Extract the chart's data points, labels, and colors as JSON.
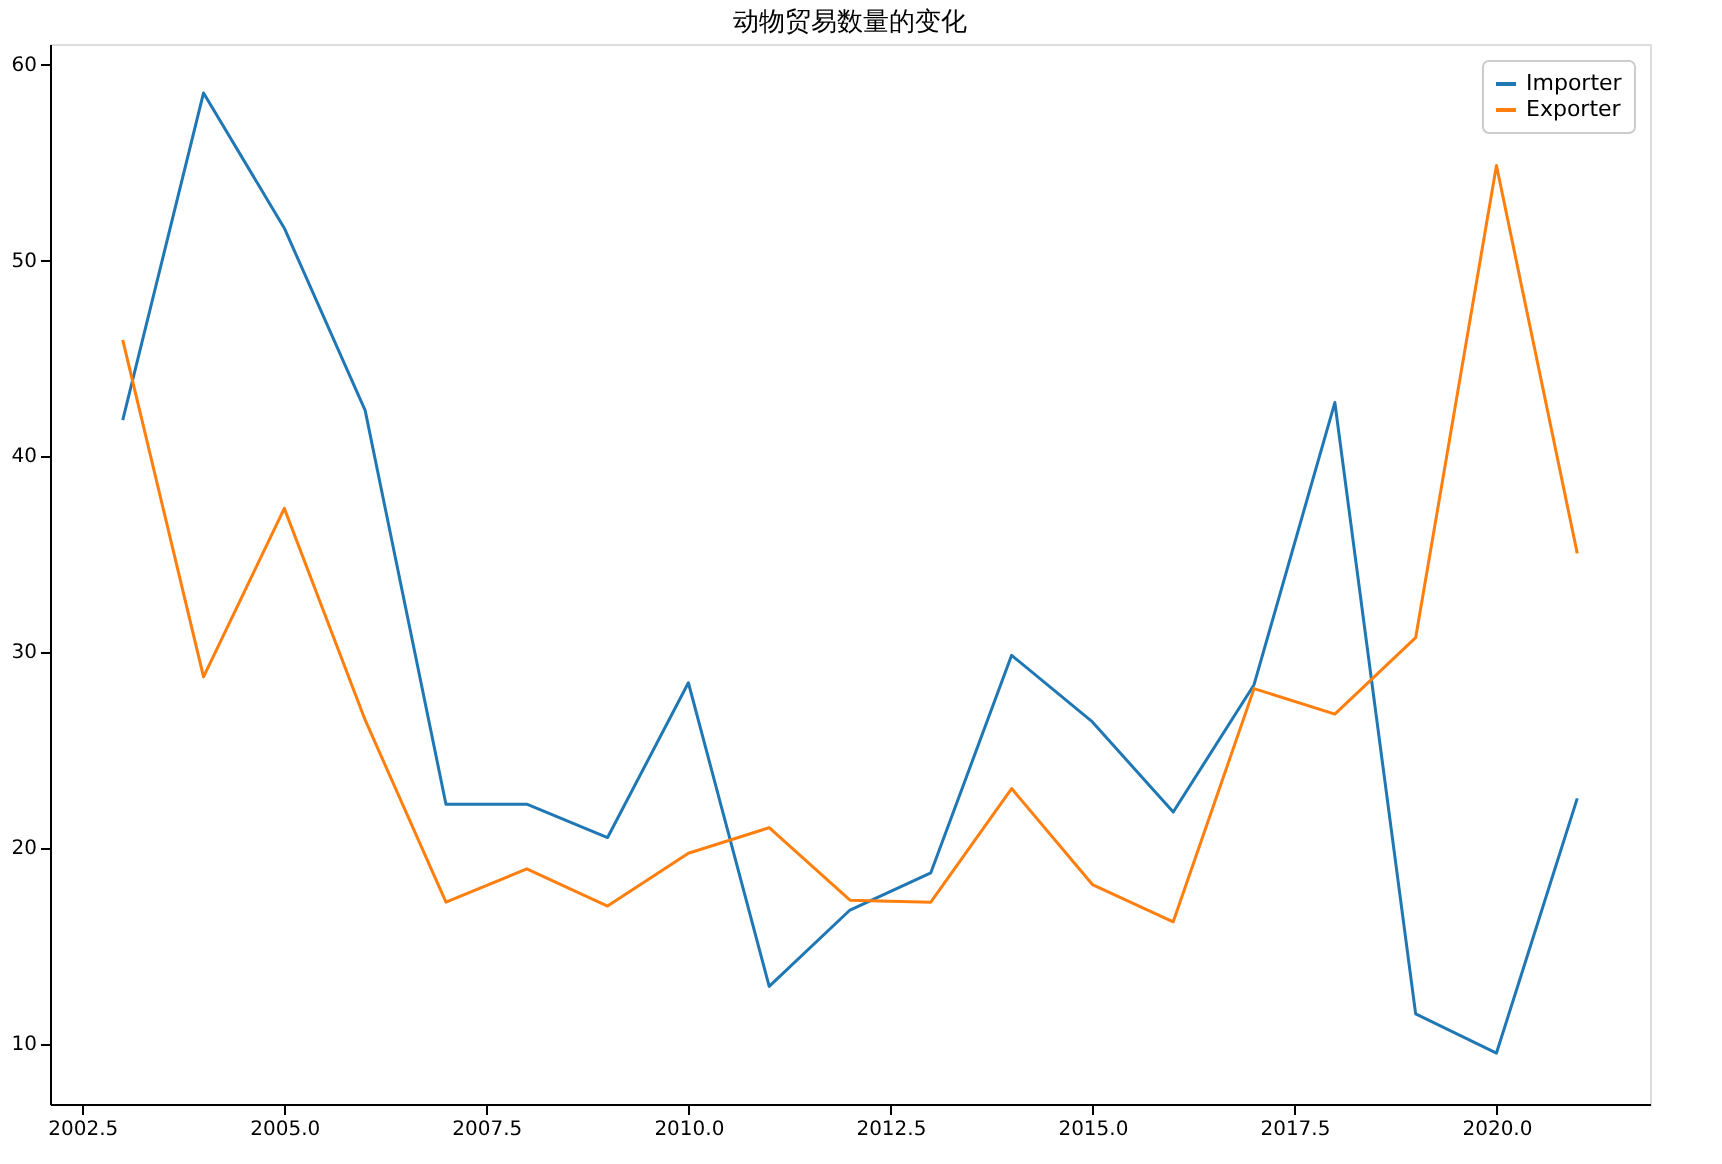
{
  "chart_data": {
    "type": "line",
    "title": "动物贸易数量的变化",
    "x": [
      2003,
      2004,
      2005,
      2006,
      2007,
      2008,
      2009,
      2010,
      2011,
      2012,
      2013,
      2014,
      2015,
      2016,
      2017,
      2018,
      2019,
      2020,
      2021
    ],
    "series": [
      {
        "name": "Importer",
        "color": "#1f77b4",
        "values": [
          41.8,
          58.5,
          51.6,
          42.3,
          22.2,
          22.2,
          20.5,
          28.4,
          12.9,
          16.8,
          18.7,
          29.8,
          26.4,
          21.8,
          28.3,
          42.7,
          11.5,
          9.5,
          22.5
        ]
      },
      {
        "name": "Exporter",
        "color": "#ff7f0e",
        "values": [
          45.9,
          28.7,
          37.3,
          26.5,
          17.2,
          18.9,
          17.0,
          19.7,
          21.0,
          17.3,
          17.2,
          23.0,
          18.1,
          16.2,
          28.1,
          26.8,
          30.7,
          54.8,
          35.0
        ]
      }
    ],
    "xlim": [
      2002.1,
      2021.9
    ],
    "xticks": [
      2002.5,
      {
        "value": 2005,
        "label": "2005.0"
      },
      2007.5,
      {
        "value": 2010,
        "label": "2010.0"
      },
      2012.5,
      {
        "value": 2015,
        "label": "2015.0"
      },
      2017.5,
      {
        "value": 2020,
        "label": "2020.0"
      }
    ],
    "ylim": [
      6.9,
      61.0
    ],
    "yticks": [
      10,
      20,
      30,
      40,
      50,
      60
    ],
    "grid": false,
    "legend": "top right",
    "marker": "none",
    "line_style": "solid"
  }
}
